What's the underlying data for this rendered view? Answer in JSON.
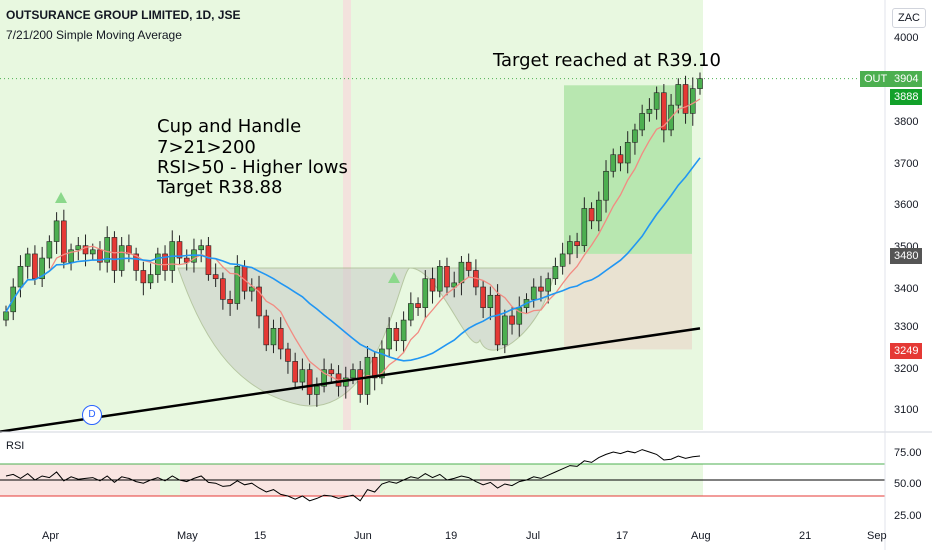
{
  "header": {
    "title": "OUTSURANCE GROUP LIMITED, 1D, JSE",
    "indicator": "7/21/200 Simple Moving Average",
    "currency_button": "ZAC"
  },
  "annotations": {
    "target_reached": "Target reached at R39.10",
    "setup_lines": [
      "Cup and Handle",
      "7>21>200",
      "RSI>50 - Higher lows",
      "Target R38.88"
    ],
    "dividend_marker": "D"
  },
  "price_axis": {
    "ticks": [
      "4000",
      "3900",
      "3800",
      "3700",
      "3600",
      "3500",
      "3400",
      "3300",
      "3200",
      "3100"
    ],
    "symbol_tag": "OUT",
    "last_price": "3904",
    "target_price": "3888",
    "entry_price": "3480",
    "stop_price": "3249"
  },
  "rsi_panel": {
    "label": "RSI",
    "ticks": [
      "75.00",
      "50.00",
      "25.00"
    ]
  },
  "time_axis": {
    "labels": [
      "Apr",
      "May",
      "15",
      "Jun",
      "19",
      "Jul",
      "17",
      "Aug",
      "21",
      "Sep"
    ]
  },
  "colors": {
    "up_candle": "#4caf50",
    "down_candle": "#e53935",
    "sma7": "#f28b82",
    "sma21": "#2196f3",
    "sma200": "#000000",
    "background_zone": "#e8f8e0",
    "target_zone": "#a8e2a0",
    "stop_zone": "#e9dfcf"
  },
  "chart_data": {
    "type": "candlestick",
    "ylim": [
      3060,
      4080
    ],
    "closes": [
      3340,
      3400,
      3450,
      3480,
      3420,
      3470,
      3510,
      3560,
      3460,
      3490,
      3500,
      3480,
      3490,
      3460,
      3520,
      3440,
      3500,
      3480,
      3440,
      3410,
      3430,
      3480,
      3440,
      3510,
      3470,
      3460,
      3490,
      3500,
      3430,
      3420,
      3370,
      3360,
      3450,
      3390,
      3400,
      3330,
      3260,
      3300,
      3250,
      3220,
      3170,
      3200,
      3140,
      3160,
      3200,
      3190,
      3160,
      3180,
      3200,
      3140,
      3230,
      3180,
      3250,
      3300,
      3270,
      3320,
      3360,
      3350,
      3420,
      3390,
      3450,
      3400,
      3410,
      3460,
      3440,
      3400,
      3350,
      3380,
      3260,
      3330,
      3310,
      3350,
      3370,
      3400,
      3390,
      3420,
      3450,
      3480,
      3510,
      3500,
      3590,
      3560,
      3610,
      3680,
      3720,
      3700,
      3750,
      3780,
      3820,
      3830,
      3870,
      3780,
      3840,
      3890,
      3820,
      3880,
      3904
    ],
    "rsi": [
      55,
      57,
      52,
      58,
      50,
      55,
      53,
      60,
      49,
      54,
      51,
      52,
      53,
      49,
      55,
      47,
      54,
      52,
      48,
      46,
      50,
      53,
      49,
      55,
      50,
      48,
      52,
      55,
      47,
      46,
      42,
      43,
      49,
      44,
      46,
      40,
      35,
      38,
      32,
      30,
      26,
      30,
      24,
      27,
      31,
      30,
      27,
      29,
      31,
      24,
      38,
      35,
      45,
      48,
      46,
      50,
      54,
      52,
      58,
      53,
      57,
      50,
      52,
      55,
      53,
      48,
      44,
      47,
      40,
      45,
      43,
      48,
      50,
      54,
      52,
      56,
      60,
      64,
      68,
      67,
      74,
      72,
      78,
      82,
      85,
      83,
      86,
      84,
      88,
      85,
      82,
      75,
      76,
      80,
      77,
      79,
      80
    ]
  }
}
